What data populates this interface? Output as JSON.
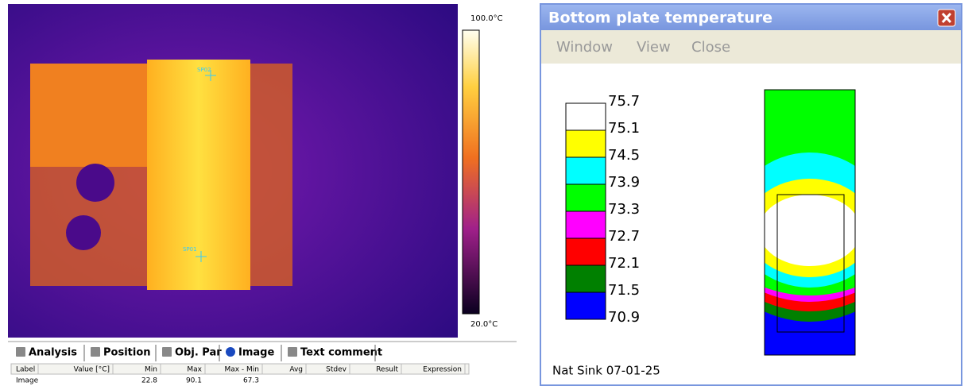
{
  "left": {
    "colorbar": {
      "max": "100.0°C",
      "min": "20.0°C"
    },
    "spots": [
      "SP02",
      "SP01"
    ],
    "tabs": [
      "Analysis",
      "Position",
      "Obj. Par",
      "Image",
      "Text comment"
    ],
    "table": {
      "columns": [
        "Label",
        "Value [°C]",
        "Min",
        "Max",
        "Max - Min",
        "Avg",
        "Stdev",
        "Result",
        "Expression"
      ],
      "row": {
        "label": "Image",
        "min": "22.8",
        "max": "90.1",
        "range": "67.3"
      }
    }
  },
  "right": {
    "title": "Bottom plate temperature",
    "menu": [
      "Window",
      "View",
      "Close"
    ],
    "legend": {
      "levels": [
        "75.7",
        "75.1",
        "74.5",
        "73.9",
        "73.3",
        "72.7",
        "72.1",
        "71.5",
        "70.9"
      ],
      "colors": [
        "#ffffff",
        "#ffff00",
        "#00ffff",
        "#00ff00",
        "#ff00ff",
        "#ff0000",
        "#008000",
        "#0000ff"
      ]
    },
    "footer": "Nat Sink 07-01-25"
  }
}
